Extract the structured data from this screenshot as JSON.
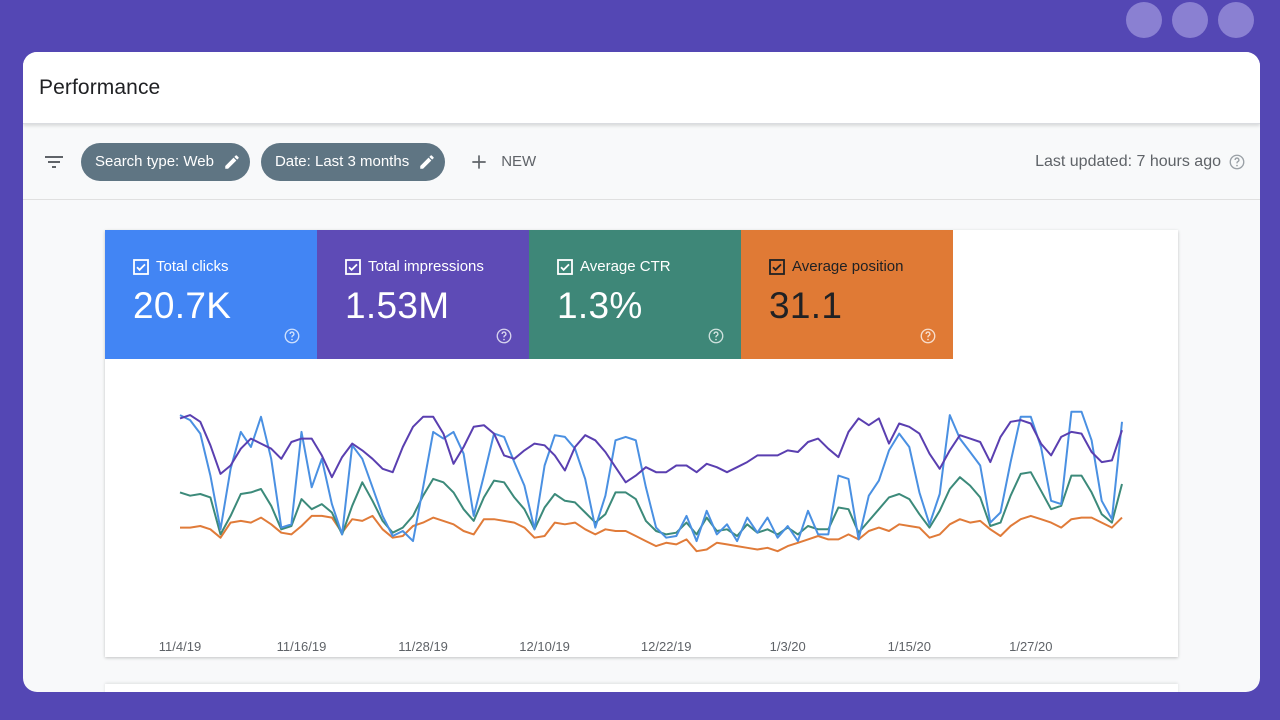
{
  "window": {
    "title": "Performance"
  },
  "toolbar": {
    "filters": [
      {
        "label": "Search type: Web"
      },
      {
        "label": "Date: Last 3 months"
      }
    ],
    "new_label": "NEW",
    "last_updated": "Last updated: 7 hours ago"
  },
  "metrics": [
    {
      "label": "Total clicks",
      "value": "20.7K",
      "color": "#4285f4",
      "checked": true
    },
    {
      "label": "Total impressions",
      "value": "1.53M",
      "color": "#5e4bb6",
      "checked": true
    },
    {
      "label": "Average CTR",
      "value": "1.3%",
      "color": "#3e8778",
      "checked": true
    },
    {
      "label": "Average position",
      "value": "31.1",
      "color": "#e07a35",
      "checked": true
    }
  ],
  "chart_data": {
    "type": "line",
    "x_tick_labels": [
      "11/4/19",
      "11/16/19",
      "11/28/19",
      "12/10/19",
      "12/22/19",
      "1/3/20",
      "1/15/20",
      "1/27/20"
    ],
    "axis_values_shown": false,
    "grid": false,
    "series": [
      {
        "name": "Total clicks",
        "color": "#4a90e2",
        "values": [
          0.94,
          0.91,
          0.83,
          0.58,
          0.26,
          0.62,
          0.84,
          0.75,
          0.93,
          0.68,
          0.27,
          0.29,
          0.84,
          0.51,
          0.68,
          0.41,
          0.23,
          0.76,
          0.68,
          0.51,
          0.34,
          0.22,
          0.25,
          0.19,
          0.51,
          0.84,
          0.8,
          0.84,
          0.71,
          0.34,
          0.58,
          0.83,
          0.81,
          0.66,
          0.52,
          0.26,
          0.64,
          0.82,
          0.81,
          0.74,
          0.56,
          0.27,
          0.46,
          0.79,
          0.81,
          0.79,
          0.51,
          0.27,
          0.21,
          0.22,
          0.34,
          0.19,
          0.37,
          0.23,
          0.29,
          0.19,
          0.33,
          0.24,
          0.33,
          0.21,
          0.28,
          0.19,
          0.37,
          0.23,
          0.23,
          0.58,
          0.56,
          0.2,
          0.46,
          0.55,
          0.73,
          0.83,
          0.75,
          0.48,
          0.29,
          0.47,
          0.94,
          0.8,
          0.72,
          0.64,
          0.3,
          0.36,
          0.66,
          0.93,
          0.93,
          0.75,
          0.43,
          0.41,
          0.96,
          0.96,
          0.79,
          0.43,
          0.32,
          0.9
        ]
      },
      {
        "name": "Total impressions",
        "color": "#5a3fb0",
        "values": [
          0.92,
          0.94,
          0.9,
          0.76,
          0.59,
          0.64,
          0.74,
          0.8,
          0.77,
          0.74,
          0.68,
          0.78,
          0.8,
          0.8,
          0.7,
          0.57,
          0.69,
          0.77,
          0.73,
          0.68,
          0.62,
          0.6,
          0.75,
          0.87,
          0.93,
          0.93,
          0.83,
          0.65,
          0.75,
          0.87,
          0.88,
          0.83,
          0.7,
          0.68,
          0.73,
          0.77,
          0.76,
          0.7,
          0.61,
          0.75,
          0.82,
          0.79,
          0.72,
          0.63,
          0.54,
          0.58,
          0.63,
          0.6,
          0.6,
          0.64,
          0.64,
          0.6,
          0.65,
          0.63,
          0.6,
          0.63,
          0.66,
          0.7,
          0.7,
          0.7,
          0.73,
          0.72,
          0.78,
          0.8,
          0.74,
          0.69,
          0.84,
          0.92,
          0.88,
          0.92,
          0.77,
          0.89,
          0.87,
          0.83,
          0.71,
          0.62,
          0.73,
          0.82,
          0.8,
          0.78,
          0.66,
          0.81,
          0.9,
          0.91,
          0.89,
          0.77,
          0.7,
          0.81,
          0.84,
          0.83,
          0.72,
          0.66,
          0.67,
          0.85
        ]
      },
      {
        "name": "Average CTR",
        "color": "#3c8a7a",
        "values": [
          0.48,
          0.46,
          0.47,
          0.45,
          0.23,
          0.34,
          0.47,
          0.48,
          0.5,
          0.4,
          0.26,
          0.28,
          0.44,
          0.38,
          0.41,
          0.36,
          0.23,
          0.4,
          0.54,
          0.43,
          0.31,
          0.24,
          0.27,
          0.34,
          0.46,
          0.56,
          0.54,
          0.48,
          0.38,
          0.31,
          0.45,
          0.55,
          0.54,
          0.45,
          0.38,
          0.26,
          0.39,
          0.47,
          0.43,
          0.42,
          0.36,
          0.3,
          0.35,
          0.48,
          0.48,
          0.44,
          0.31,
          0.25,
          0.23,
          0.24,
          0.3,
          0.23,
          0.33,
          0.25,
          0.26,
          0.22,
          0.29,
          0.24,
          0.26,
          0.23,
          0.27,
          0.23,
          0.28,
          0.26,
          0.26,
          0.39,
          0.38,
          0.24,
          0.31,
          0.38,
          0.45,
          0.47,
          0.44,
          0.35,
          0.27,
          0.37,
          0.5,
          0.57,
          0.52,
          0.45,
          0.28,
          0.3,
          0.46,
          0.59,
          0.6,
          0.49,
          0.38,
          0.4,
          0.58,
          0.58,
          0.48,
          0.35,
          0.3,
          0.53
        ]
      },
      {
        "name": "Average position",
        "color": "#e07b39",
        "values": [
          0.27,
          0.27,
          0.28,
          0.26,
          0.21,
          0.3,
          0.31,
          0.3,
          0.33,
          0.29,
          0.24,
          0.23,
          0.28,
          0.34,
          0.34,
          0.33,
          0.24,
          0.32,
          0.31,
          0.34,
          0.26,
          0.21,
          0.22,
          0.28,
          0.3,
          0.33,
          0.31,
          0.29,
          0.25,
          0.23,
          0.32,
          0.32,
          0.31,
          0.3,
          0.27,
          0.21,
          0.22,
          0.3,
          0.29,
          0.3,
          0.26,
          0.23,
          0.26,
          0.25,
          0.25,
          0.22,
          0.19,
          0.16,
          0.18,
          0.17,
          0.2,
          0.13,
          0.14,
          0.18,
          0.17,
          0.16,
          0.15,
          0.14,
          0.15,
          0.13,
          0.16,
          0.18,
          0.2,
          0.22,
          0.2,
          0.2,
          0.23,
          0.2,
          0.25,
          0.27,
          0.25,
          0.29,
          0.28,
          0.27,
          0.21,
          0.23,
          0.29,
          0.32,
          0.3,
          0.31,
          0.26,
          0.22,
          0.28,
          0.32,
          0.34,
          0.32,
          0.3,
          0.27,
          0.32,
          0.33,
          0.33,
          0.3,
          0.27,
          0.33
        ]
      }
    ]
  }
}
